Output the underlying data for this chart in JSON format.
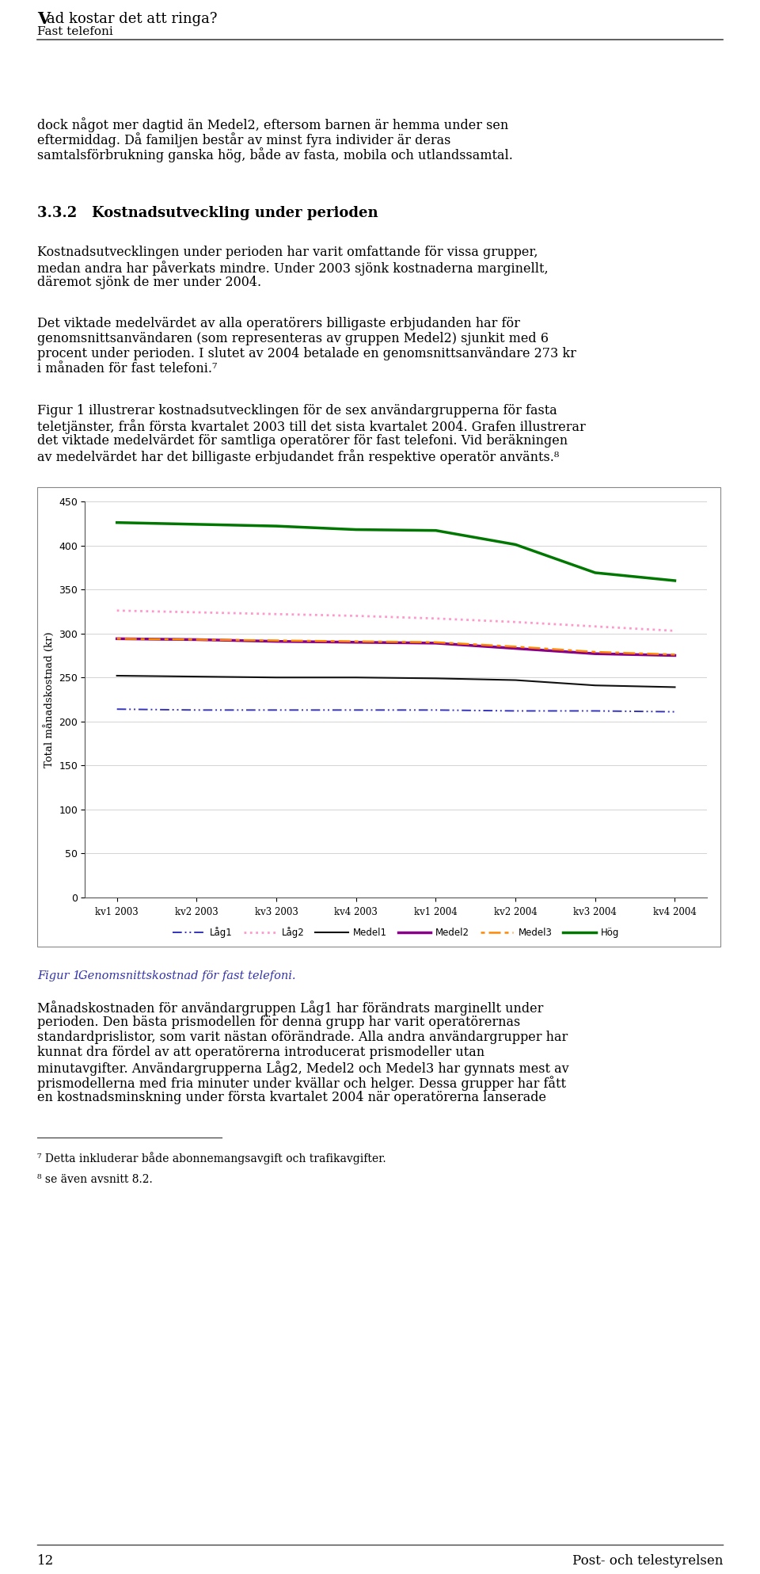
{
  "x_labels": [
    "kv1 2003",
    "kv2 2003",
    "kv3 2003",
    "kv4 2003",
    "kv1 2004",
    "kv2 2004",
    "kv3 2004",
    "kv4 2004"
  ],
  "series": {
    "Lag1": [
      214,
      213,
      213,
      213,
      213,
      212,
      212,
      211
    ],
    "Lag2": [
      326,
      324,
      322,
      320,
      317,
      313,
      308,
      303
    ],
    "Medel1": [
      252,
      251,
      250,
      250,
      249,
      247,
      241,
      239
    ],
    "Medel2": [
      294,
      293,
      291,
      290,
      289,
      283,
      277,
      275
    ],
    "Medel3": [
      294,
      293,
      292,
      291,
      290,
      285,
      279,
      276
    ],
    "Hog": [
      426,
      424,
      422,
      418,
      417,
      401,
      369,
      360
    ]
  },
  "ylim": [
    0,
    450
  ],
  "yticks": [
    0,
    50,
    100,
    150,
    200,
    250,
    300,
    350,
    400,
    450
  ],
  "ylabel": "Total månadskostnad (kr)",
  "colors": {
    "Lag1": "#3333bb",
    "Lag2": "#ff99cc",
    "Medel1": "#111111",
    "Medel2": "#880088",
    "Medel3": "#ff8800",
    "Hog": "#007700"
  },
  "legend_labels": [
    "Låg1",
    "Låg2",
    "Medel1",
    "Medel2",
    "Medel3",
    "Hög"
  ],
  "header_title_bold": "V",
  "header_title_rest": "ad kostar det att ringa?",
  "header_subtitle": "Fast telefoni",
  "background_color": "#ffffff",
  "plot_bg_color": "#ffffff",
  "text_color": "#000000",
  "caption_color": "#3333aa",
  "body_fontsize": 11.5,
  "heading_fontsize": 13,
  "footer_fontsize": 12,
  "footnote_fontsize": 10
}
